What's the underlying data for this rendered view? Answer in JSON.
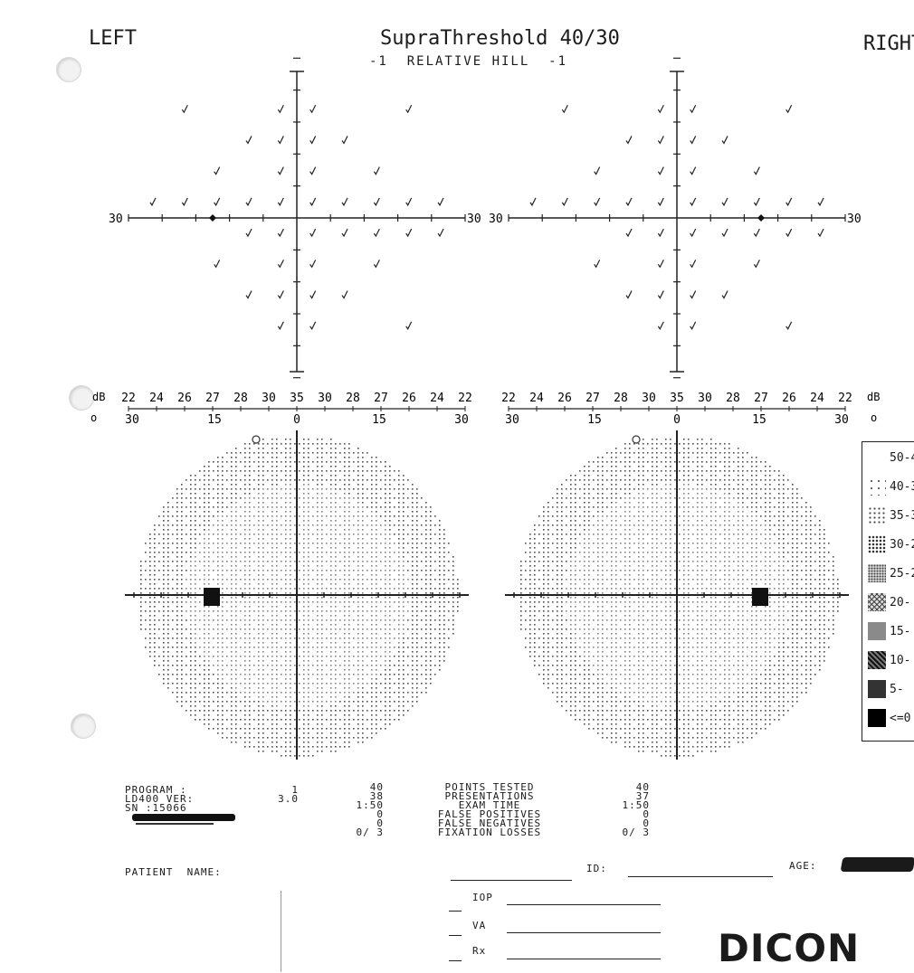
{
  "header": {
    "left_label": "LEFT",
    "title": "SupraThreshold 40/30",
    "subtitle": "-1  RELATIVE HILL  -1",
    "right_label": "RIGHT"
  },
  "scales": {
    "db_unit": "dB",
    "deg_unit": "o",
    "left_db": [
      "22",
      "24",
      "26",
      "27",
      "28",
      "30",
      "35",
      "30",
      "28",
      "27",
      "26",
      "24",
      "22"
    ],
    "right_db": [
      "22",
      "24",
      "26",
      "27",
      "28",
      "30",
      "35",
      "30",
      "28",
      "27",
      "26",
      "24",
      "22"
    ],
    "left_deg": [
      "30",
      "15",
      "0",
      "15",
      "30"
    ],
    "right_deg": [
      "30",
      "15",
      "0",
      "15",
      "30"
    ],
    "axis_end_label": "30"
  },
  "fields": {
    "left": {
      "eye": "LEFT",
      "points_tested": 40,
      "marks": "check",
      "blind_spot": "temporal-15"
    },
    "right": {
      "eye": "RIGHT",
      "points_tested": 40,
      "marks": "check",
      "blind_spot": "temporal-15"
    }
  },
  "legend": {
    "items": [
      {
        "label": "50-4",
        "pattern": "blank"
      },
      {
        "label": "40-3",
        "pattern": "sparse"
      },
      {
        "label": "35-3",
        "pattern": "light"
      },
      {
        "label": "30-2",
        "pattern": "medium"
      },
      {
        "label": "25-2",
        "pattern": "mediumdense"
      },
      {
        "label": "20-",
        "pattern": "crosshatch"
      },
      {
        "label": "15-",
        "pattern": "gray"
      },
      {
        "label": "10-",
        "pattern": "darkhatch"
      },
      {
        "label": "5-",
        "pattern": "dark"
      },
      {
        "label": "<=0",
        "pattern": "black"
      }
    ]
  },
  "program_info": {
    "labels": [
      "PROGRAM    :",
      "LD400  VER:",
      "SN         :15066"
    ],
    "values": [
      "1",
      "3.0",
      ""
    ]
  },
  "left_stats": [
    "40",
    "38",
    "1:50",
    "0",
    "0",
    "0/ 3"
  ],
  "stat_labels": [
    "POINTS  TESTED",
    "PRESENTATIONS",
    "EXAM  TIME",
    "FALSE  POSITIVES",
    "FALSE  NEGATIVES",
    "FIXATION  LOSSES"
  ],
  "right_stats": [
    "40",
    "37",
    "1:50",
    "0",
    "0",
    "0/ 3"
  ],
  "patient": {
    "name_label": "PATIENT  NAME:",
    "id_label": "ID:",
    "age_label": "AGE:",
    "iop_label": "IOP",
    "va_label": "VA",
    "rx_label": "Rx"
  },
  "brand": "DICON"
}
